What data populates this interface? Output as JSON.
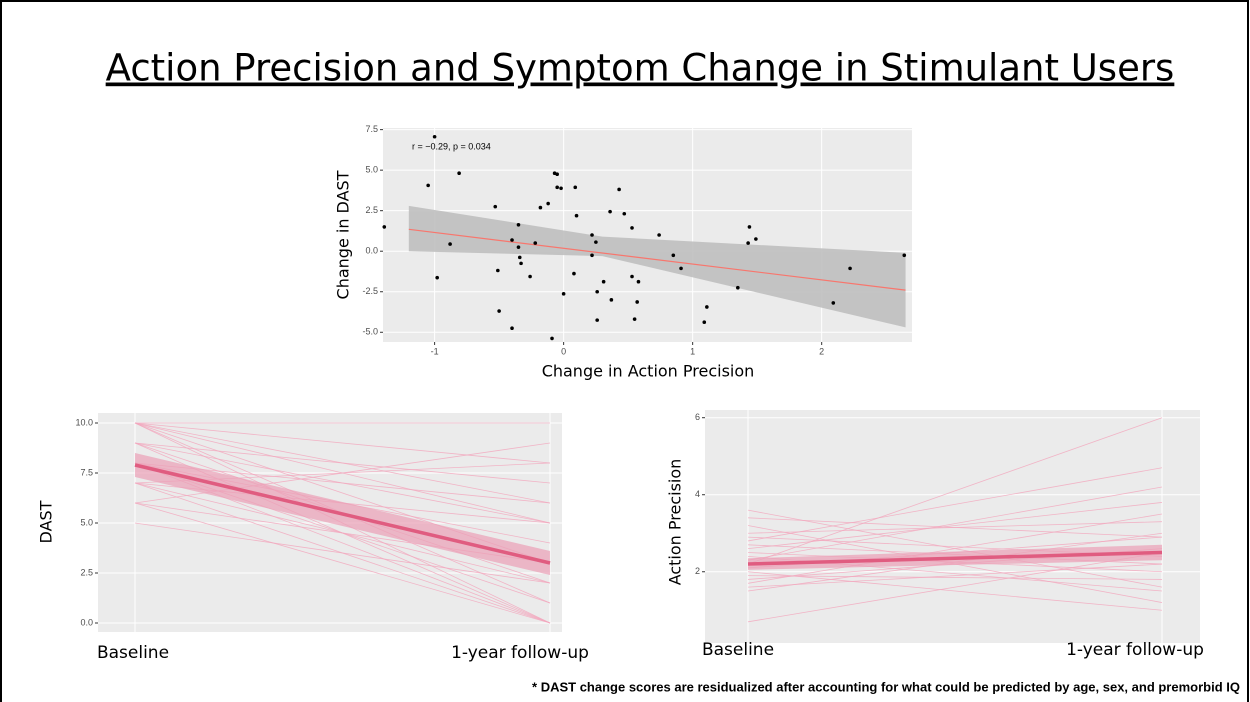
{
  "title": "Action Precision and Symptom Change in Stimulant Users",
  "footnote": "* DAST change scores are residualized after accounting for what could be predicted by age, sex, and premorbid IQ",
  "chart_data": [
    {
      "type": "scatter",
      "xlabel": "Change in Action Precision",
      "ylabel": "Change in DAST",
      "annotation": "r = −0.29, p = 0.034",
      "xlim": [
        -1.4,
        2.7
      ],
      "ylim": [
        -5.6,
        7.6
      ],
      "xticks": [
        -1,
        0,
        1,
        2
      ],
      "yticks": [
        {
          "value": -5,
          "label": "-5.0"
        },
        -2.5,
        {
          "value": 0,
          "label": "0.0"
        },
        2.5,
        {
          "value": 5,
          "label": "5.0"
        },
        7.5
      ],
      "color": "#000000",
      "fit_color": "#f8766d",
      "band_color": "#bfbfbf",
      "x": [
        -1.39,
        -1.05,
        -1.0,
        -0.98,
        -0.88,
        -0.81,
        -0.53,
        -0.51,
        -0.5,
        -0.4,
        -0.4,
        -0.35,
        -0.35,
        -0.34,
        -0.33,
        -0.26,
        -0.22,
        -0.18,
        -0.12,
        -0.09,
        -0.07,
        -0.05,
        -0.05,
        -0.02,
        0.0,
        0.08,
        0.09,
        0.1,
        0.22,
        0.22,
        0.25,
        0.26,
        0.26,
        0.31,
        0.36,
        0.37,
        0.43,
        0.47,
        0.53,
        0.53,
        0.55,
        0.57,
        0.58,
        0.74,
        0.85,
        0.91,
        1.09,
        1.11,
        1.35,
        1.43,
        1.44,
        1.49,
        2.09,
        2.22,
        2.64
      ],
      "y": [
        1.5,
        4.06,
        7.06,
        -1.63,
        0.44,
        4.81,
        2.75,
        -1.19,
        -3.69,
        0.69,
        -4.75,
        1.63,
        0.25,
        -0.38,
        -0.75,
        -1.56,
        0.5,
        2.69,
        2.94,
        -5.38,
        4.81,
        4.75,
        3.94,
        3.88,
        -2.63,
        -1.38,
        3.94,
        2.19,
        -0.25,
        1.0,
        0.56,
        -2.5,
        -4.25,
        -1.88,
        2.44,
        -3.0,
        3.81,
        2.31,
        1.44,
        -1.56,
        -4.19,
        -3.13,
        -1.88,
        1.0,
        -0.25,
        -1.06,
        -4.38,
        -3.44,
        -2.25,
        0.5,
        1.5,
        0.75,
        -3.19,
        -1.06,
        -0.25
      ],
      "fit": {
        "x": [
          -1.2,
          2.65
        ],
        "y": [
          1.35,
          -2.4
        ]
      },
      "band": {
        "x": [
          -1.2,
          0.3,
          2.65
        ],
        "upper": [
          2.8,
          0.9,
          -0.1
        ],
        "lower": [
          0.0,
          -0.3,
          -4.7
        ]
      }
    },
    {
      "type": "line",
      "ylabel": "DAST",
      "categories": [
        "Baseline",
        "1-year follow-up"
      ],
      "ylim": [
        -0.45,
        10.5
      ],
      "yticks": [
        {
          "value": 0,
          "label": "0.0"
        },
        2.5,
        {
          "value": 5,
          "label": "5.0"
        },
        7.5,
        {
          "value": 10,
          "label": "10.0"
        }
      ],
      "color": "#e05c80",
      "line_color": "#f2a6bd",
      "band_color": "#eb9fb6",
      "lines": [
        [
          10,
          10
        ],
        [
          10,
          8
        ],
        [
          10,
          6
        ],
        [
          10,
          3
        ],
        [
          10,
          0
        ],
        [
          9,
          5
        ],
        [
          9,
          2
        ],
        [
          9,
          7
        ],
        [
          8,
          4
        ],
        [
          8,
          1
        ],
        [
          8,
          0
        ],
        [
          7,
          2
        ],
        [
          7,
          5
        ],
        [
          6,
          3
        ],
        [
          6,
          0
        ],
        [
          10,
          1
        ],
        [
          9,
          0
        ],
        [
          8,
          6
        ],
        [
          7,
          8
        ],
        [
          5,
          2
        ],
        [
          6,
          9
        ],
        [
          10,
          5
        ],
        [
          8,
          3
        ],
        [
          7,
          0
        ]
      ],
      "mean": [
        7.9,
        3.0
      ],
      "ci_upper": [
        8.5,
        3.6
      ],
      "ci_lower": [
        7.3,
        2.4
      ]
    },
    {
      "type": "line",
      "ylabel": "Action Precision",
      "categories": [
        "Baseline",
        "1-year follow-up"
      ],
      "ylim": [
        0.15,
        6.2
      ],
      "yticks": [
        2,
        4,
        6
      ],
      "color": "#e05c80",
      "line_color": "#f2a6bd",
      "band_color": "#eb9fb6",
      "lines": [
        [
          2.2,
          6.0
        ],
        [
          3.6,
          1.6
        ],
        [
          3.2,
          1.2
        ],
        [
          2.8,
          4.7
        ],
        [
          1.5,
          3.0
        ],
        [
          0.7,
          2.5
        ],
        [
          2.0,
          1.0
        ],
        [
          2.5,
          2.0
        ],
        [
          3.0,
          3.3
        ],
        [
          1.8,
          2.6
        ],
        [
          2.3,
          4.2
        ],
        [
          1.6,
          2.2
        ],
        [
          2.6,
          3.8
        ],
        [
          2.9,
          2.4
        ],
        [
          1.9,
          1.8
        ],
        [
          3.4,
          2.9
        ],
        [
          2.1,
          2.9
        ],
        [
          2.4,
          1.5
        ],
        [
          1.7,
          3.5
        ],
        [
          2.7,
          2.2
        ]
      ],
      "mean": [
        2.2,
        2.5
      ],
      "ci_upper": [
        2.35,
        2.7
      ],
      "ci_lower": [
        2.05,
        2.3
      ]
    }
  ]
}
